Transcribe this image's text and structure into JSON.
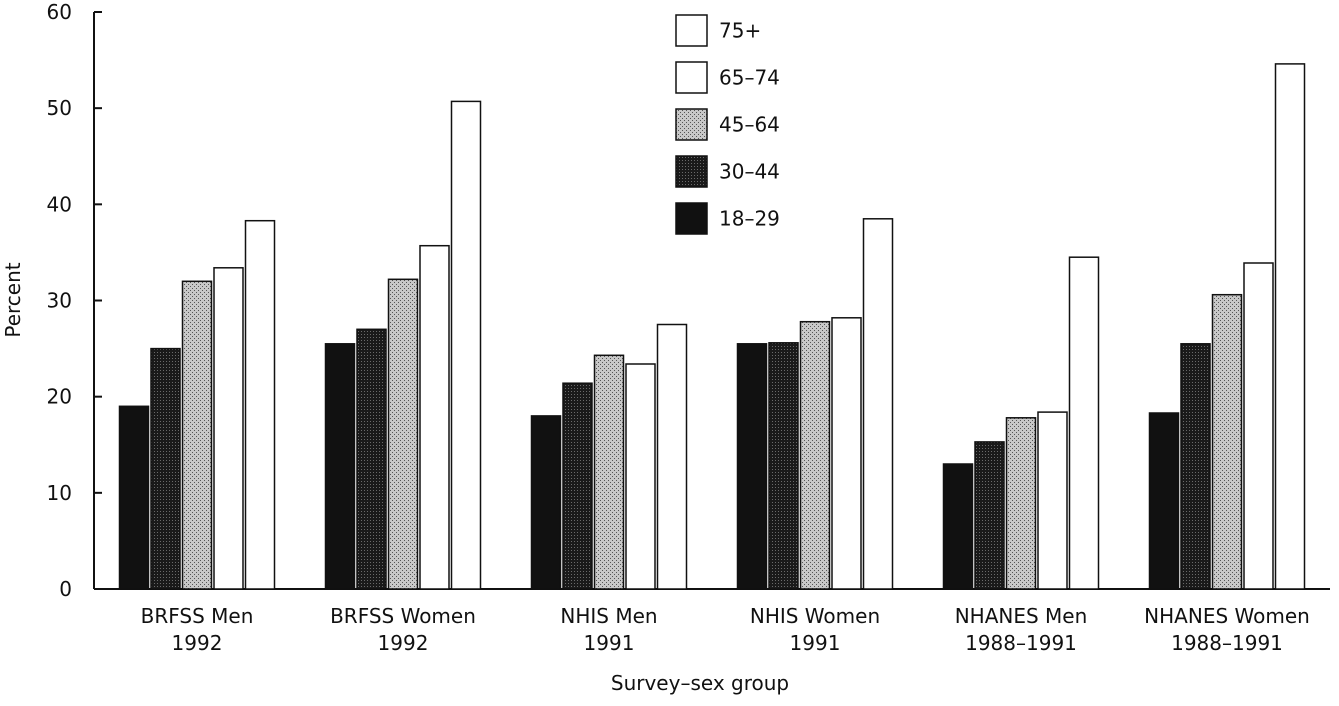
{
  "chart_data": {
    "type": "bar",
    "title": "",
    "xlabel": "Survey–sex group",
    "ylabel": "Percent",
    "ylim": [
      0,
      60
    ],
    "yticks": [
      "0",
      "10",
      "20",
      "30",
      "40",
      "50",
      "60"
    ],
    "grid": false,
    "legend_position": "top-center",
    "legend_order": [
      "75+",
      "65–74",
      "45–64",
      "30–44",
      "18–29"
    ],
    "categories": [
      [
        "BRFSS Men",
        "1992"
      ],
      [
        "BRFSS Women",
        "1992"
      ],
      [
        "NHIS Men",
        "1991"
      ],
      [
        "NHIS Women",
        "1991"
      ],
      [
        "NHANES Men",
        "1988–1991"
      ],
      [
        "NHANES Women",
        "1988–1991"
      ]
    ],
    "series": [
      {
        "name": "18–29",
        "color": "#111111",
        "pattern": "solid",
        "values": [
          19,
          25.5,
          18,
          25.5,
          13,
          18.3
        ]
      },
      {
        "name": "30–44",
        "color": "#1e1e1e",
        "pattern": "dense-dots",
        "values": [
          25,
          27,
          21.4,
          25.6,
          15.3,
          25.5
        ]
      },
      {
        "name": "45–64",
        "color": "#b4b4b4",
        "pattern": "stipple",
        "values": [
          32,
          32.2,
          24.3,
          27.8,
          17.8,
          30.6
        ]
      },
      {
        "name": "65–74",
        "color": "#ffffff",
        "pattern": "open",
        "values": [
          33.4,
          35.7,
          23.4,
          28.2,
          18.4,
          33.9
        ]
      },
      {
        "name": "75+",
        "color": "#ffffff",
        "pattern": "open",
        "values": [
          38.3,
          50.7,
          27.5,
          38.5,
          34.5,
          54.6
        ]
      }
    ]
  }
}
